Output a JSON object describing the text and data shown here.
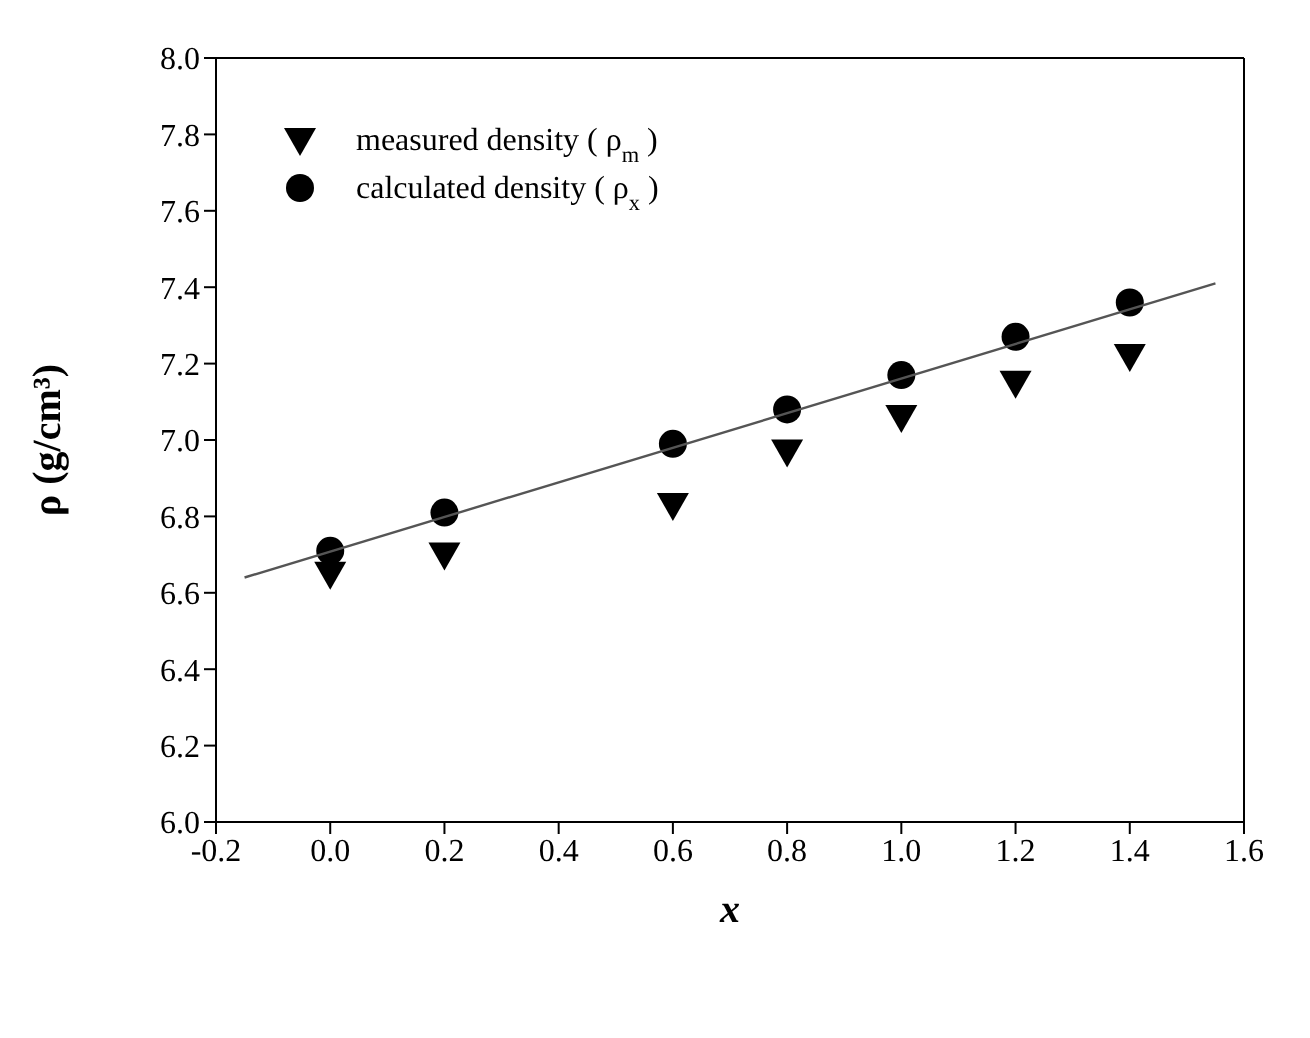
{
  "chart_data": {
    "type": "scatter",
    "xlabel": "x",
    "ylabel": "ρ (g/cm³)",
    "xlim": [
      -0.2,
      1.6
    ],
    "xticks": [
      -0.2,
      {
        "value": 0,
        "label": "0.0"
      },
      0.2,
      0.4,
      0.6,
      0.8,
      {
        "value": 1,
        "label": "1.0"
      },
      1.2,
      1.4,
      1.6
    ],
    "ylim": [
      6.0,
      8.0
    ],
    "yticks": [
      {
        "value": 6,
        "label": "6.0"
      },
      6.2,
      6.4,
      6.6,
      6.8,
      {
        "value": 7,
        "label": "7.0"
      },
      7.2,
      7.4,
      7.6,
      7.8,
      {
        "value": 8,
        "label": "8.0"
      }
    ],
    "legend": "top left",
    "series": [
      {
        "name": "measured density ( ρ$_{m}$ )",
        "color": "#000000",
        "marker": "triangle",
        "x": [
          0.0,
          0.2,
          0.6,
          0.8,
          1.0,
          1.2,
          1.4
        ],
        "values": [
          6.65,
          6.7,
          6.83,
          6.97,
          7.06,
          7.15,
          7.22
        ]
      },
      {
        "name": "calculated density ( ρ$_{x}$ )",
        "color": "#000000",
        "marker": "circle",
        "x": [
          0.0,
          0.2,
          0.6,
          0.8,
          1.0,
          1.2,
          1.4
        ],
        "values": [
          6.71,
          6.81,
          6.99,
          7.08,
          7.17,
          7.27,
          7.36
        ]
      },
      {
        "type": "line",
        "color": "#555555",
        "marker": "none",
        "x": [
          -0.15,
          1.55
        ],
        "values": [
          6.64,
          7.41
        ]
      }
    ]
  }
}
